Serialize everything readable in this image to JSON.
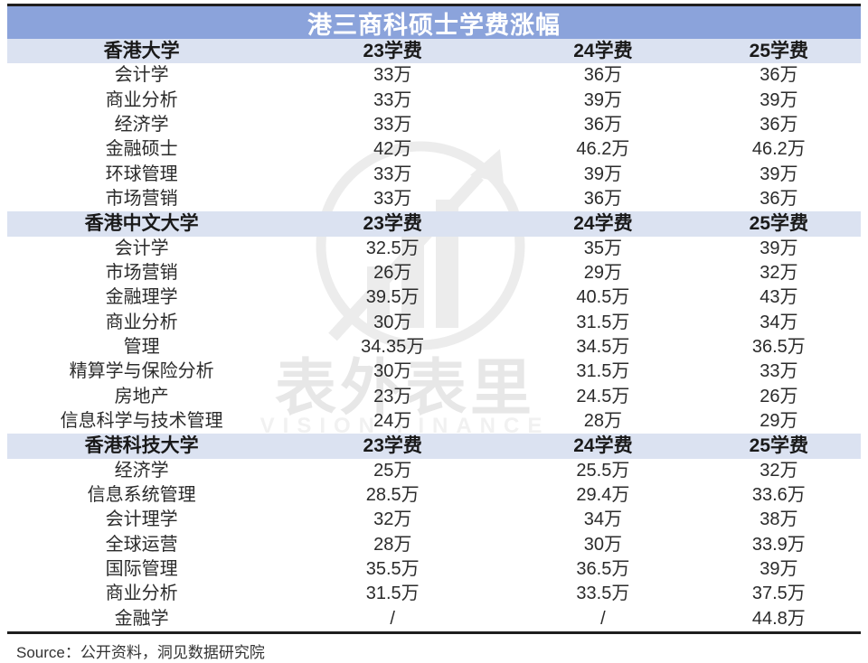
{
  "chart_data": {
    "type": "table",
    "title": "港三商科硕士学费涨幅",
    "fee_columns": [
      "23学费",
      "24学费",
      "25学费"
    ],
    "sections": [
      {
        "university": "香港大学",
        "programs": [
          {
            "name": "会计学",
            "fees": [
              "33万",
              "36万",
              "36万"
            ]
          },
          {
            "name": "商业分析",
            "fees": [
              "33万",
              "39万",
              "39万"
            ]
          },
          {
            "name": "经济学",
            "fees": [
              "33万",
              "36万",
              "36万"
            ]
          },
          {
            "name": "金融硕士",
            "fees": [
              "42万",
              "46.2万",
              "46.2万"
            ]
          },
          {
            "name": "环球管理",
            "fees": [
              "33万",
              "39万",
              "39万"
            ]
          },
          {
            "name": "市场营销",
            "fees": [
              "33万",
              "36万",
              "36万"
            ]
          }
        ]
      },
      {
        "university": "香港中文大学",
        "programs": [
          {
            "name": "会计学",
            "fees": [
              "32.5万",
              "35万",
              "39万"
            ]
          },
          {
            "name": "市场营销",
            "fees": [
              "26万",
              "29万",
              "32万"
            ]
          },
          {
            "name": "金融理学",
            "fees": [
              "39.5万",
              "40.5万",
              "43万"
            ]
          },
          {
            "name": "商业分析",
            "fees": [
              "30万",
              "31.5万",
              "34万"
            ]
          },
          {
            "name": "管理",
            "fees": [
              "34.35万",
              "34.5万",
              "36.5万"
            ]
          },
          {
            "name": "精算学与保险分析",
            "fees": [
              "30万",
              "31.5万",
              "33万"
            ]
          },
          {
            "name": "房地产",
            "fees": [
              "23万",
              "24.5万",
              "26万"
            ]
          },
          {
            "name": "信息科学与技术管理",
            "fees": [
              "24万",
              "28万",
              "29万"
            ]
          }
        ]
      },
      {
        "university": "香港科技大学",
        "programs": [
          {
            "name": "经济学",
            "fees": [
              "25万",
              "25.5万",
              "32万"
            ]
          },
          {
            "name": "信息系统管理",
            "fees": [
              "28.5万",
              "29.4万",
              "33.6万"
            ]
          },
          {
            "name": "会计理学",
            "fees": [
              "32万",
              "34万",
              "38万"
            ]
          },
          {
            "name": "全球运营",
            "fees": [
              "28万",
              "30万",
              "33.9万"
            ]
          },
          {
            "name": "国际管理",
            "fees": [
              "35.5万",
              "36.5万",
              "39万"
            ]
          },
          {
            "name": "商业分析",
            "fees": [
              "31.5万",
              "33.5万",
              "37.5万"
            ]
          },
          {
            "name": "金融学",
            "fees": [
              "/",
              "/",
              "44.8万"
            ]
          }
        ]
      }
    ]
  },
  "source_line": "Source：公开资料，洞见数据研究院",
  "watermark": {
    "logo": "growth-arrow-circle-logo",
    "text_cn": "表外表里",
    "text_en": "VISION FINANCE"
  },
  "colors": {
    "title_bg": "#8BA3DB",
    "section_header_bg": "#DBE2F1",
    "rule": "#1F1F1F",
    "body_text": "#2B2B2B",
    "watermark_gray": "#ECECEC"
  }
}
